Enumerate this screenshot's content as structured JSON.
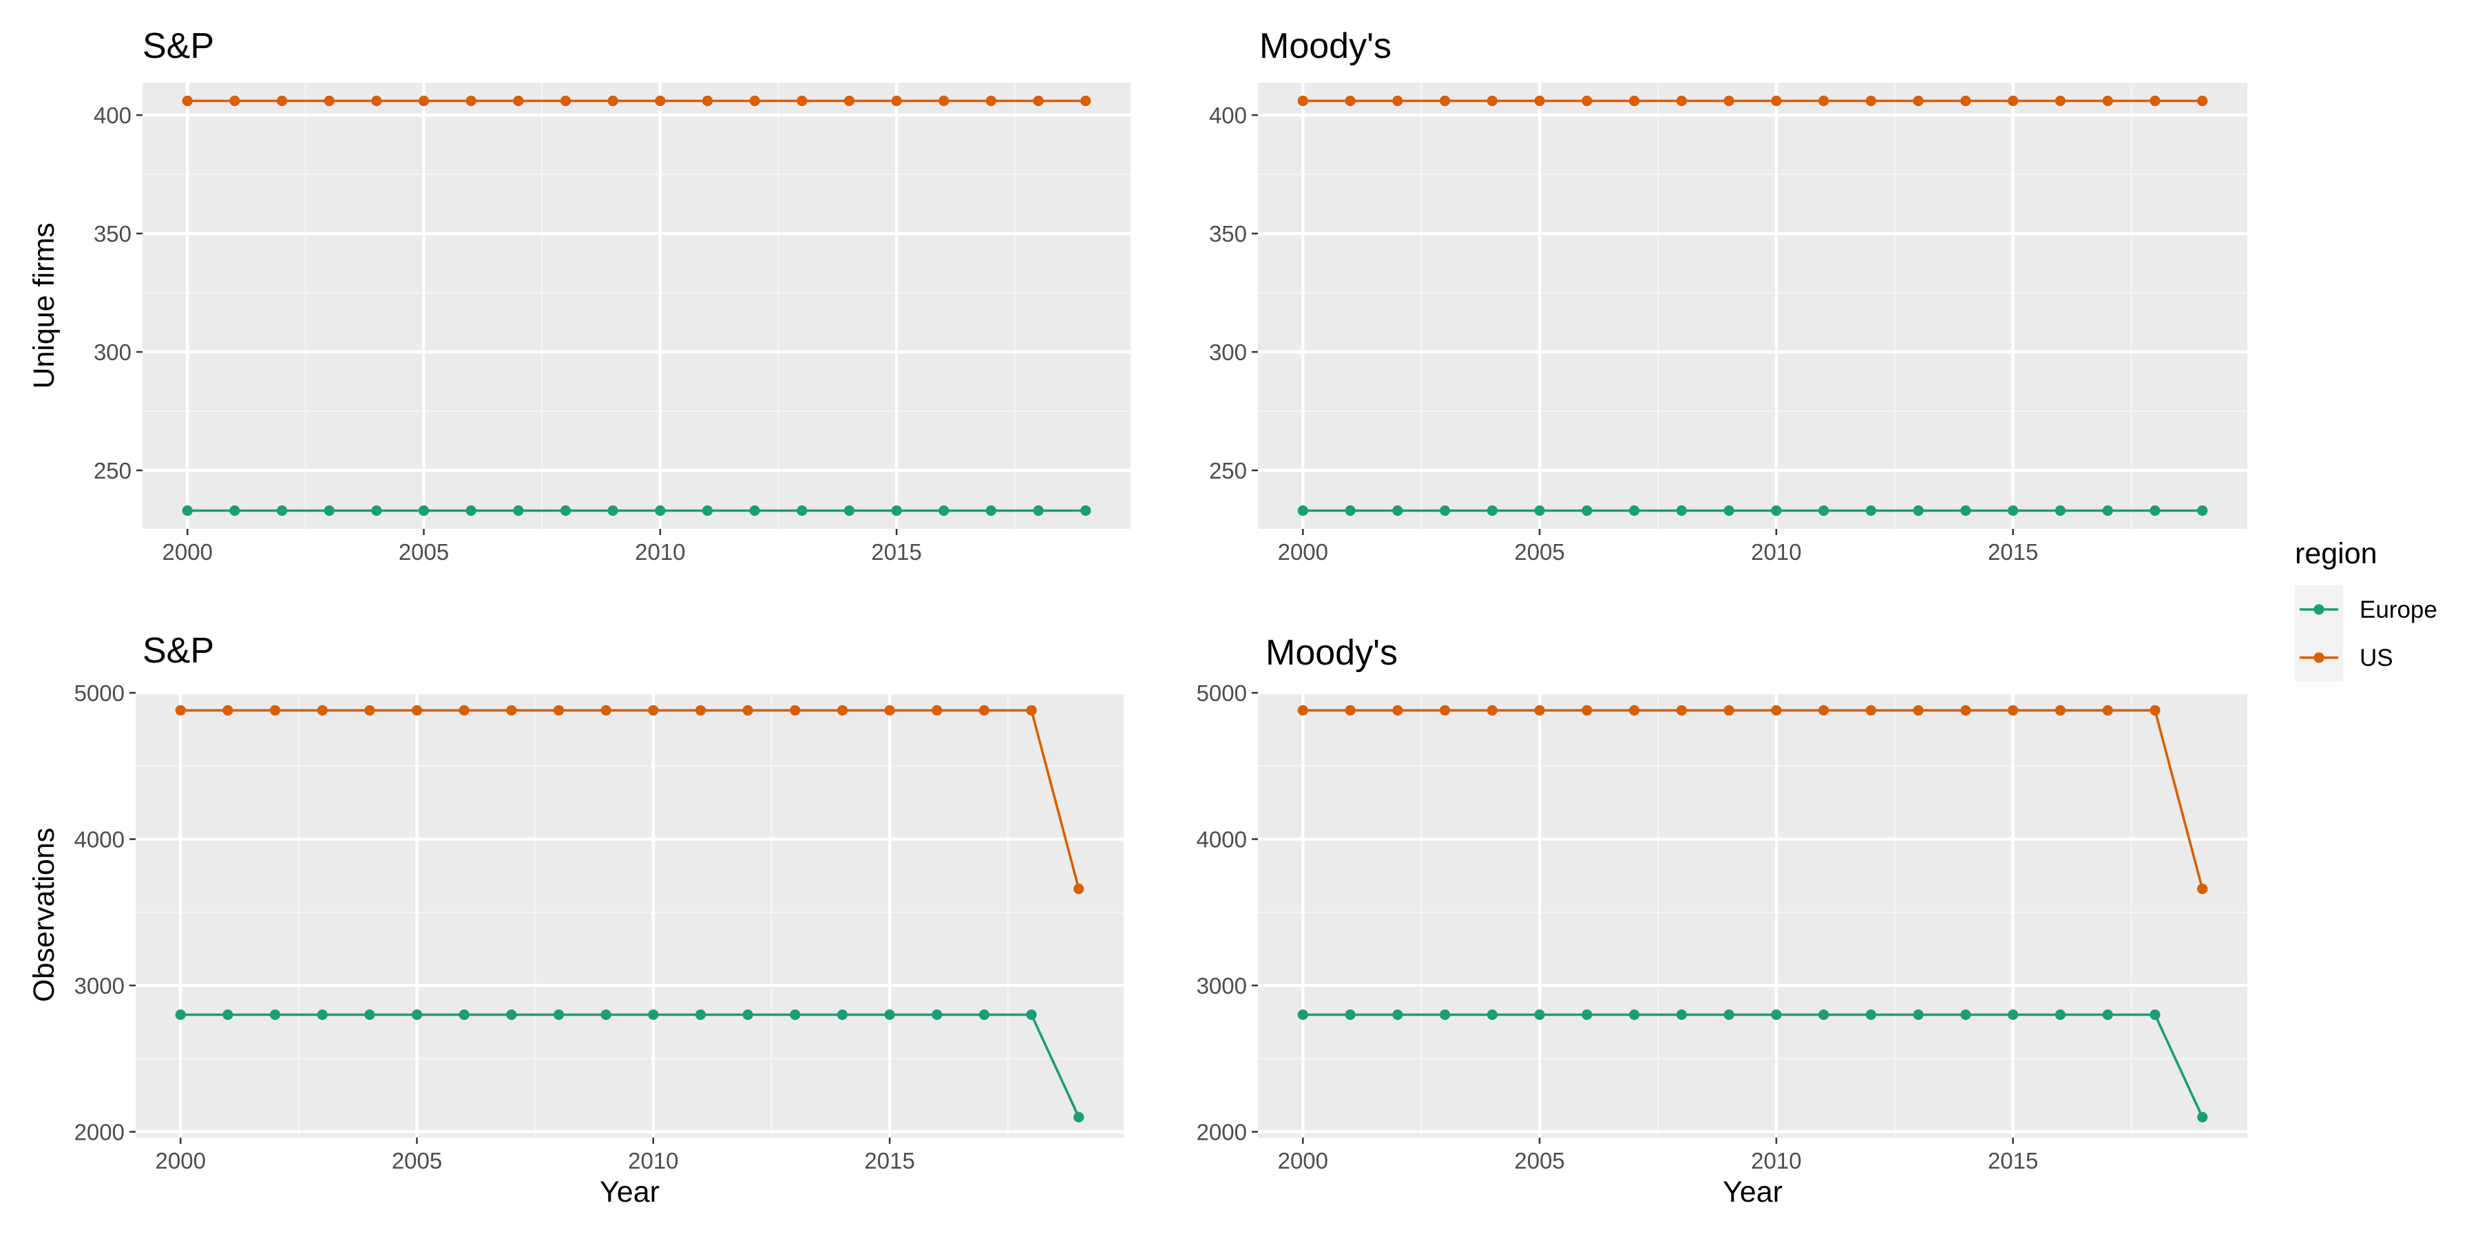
{
  "colors": {
    "panel_bg": "#EBEBEB",
    "grid_major": "#FFFFFF",
    "grid_minor": "#F5F5F5",
    "tick": "#333333",
    "europe": "#1B9E77",
    "us": "#D95F02"
  },
  "axes": {
    "xlabel": "Year",
    "ylabel_top": "Unique firms",
    "ylabel_bottom": "Observations"
  },
  "legend": {
    "title": "region",
    "items": [
      {
        "label": "Europe",
        "color": "#1B9E77"
      },
      {
        "label": "US",
        "color": "#D95F02"
      }
    ]
  },
  "chart_data": [
    {
      "type": "line",
      "title": "S&P",
      "xlabel": "",
      "ylabel": "Unique firms",
      "x": [
        2000,
        2001,
        2002,
        2003,
        2004,
        2005,
        2006,
        2007,
        2008,
        2009,
        2010,
        2011,
        2012,
        2013,
        2014,
        2015,
        2016,
        2017,
        2018,
        2019
      ],
      "xlim": [
        1999.05,
        2019.95
      ],
      "ylim": [
        225.3,
        413.7
      ],
      "xticks": [
        2000,
        2005,
        2010,
        2015
      ],
      "yticks": [
        250,
        300,
        350,
        400
      ],
      "series": [
        {
          "name": "Europe",
          "values": [
            233,
            233,
            233,
            233,
            233,
            233,
            233,
            233,
            233,
            233,
            233,
            233,
            233,
            233,
            233,
            233,
            233,
            233,
            233,
            233
          ]
        },
        {
          "name": "US",
          "values": [
            406,
            406,
            406,
            406,
            406,
            406,
            406,
            406,
            406,
            406,
            406,
            406,
            406,
            406,
            406,
            406,
            406,
            406,
            406,
            406
          ]
        }
      ]
    },
    {
      "type": "line",
      "title": "Moody's",
      "xlabel": "",
      "ylabel": "",
      "x": [
        2000,
        2001,
        2002,
        2003,
        2004,
        2005,
        2006,
        2007,
        2008,
        2009,
        2010,
        2011,
        2012,
        2013,
        2014,
        2015,
        2016,
        2017,
        2018,
        2019
      ],
      "xlim": [
        1999.05,
        2019.95
      ],
      "ylim": [
        225.3,
        413.7
      ],
      "xticks": [
        2000,
        2005,
        2010,
        2015
      ],
      "yticks": [
        250,
        300,
        350,
        400
      ],
      "series": [
        {
          "name": "Europe",
          "values": [
            233,
            233,
            233,
            233,
            233,
            233,
            233,
            233,
            233,
            233,
            233,
            233,
            233,
            233,
            233,
            233,
            233,
            233,
            233,
            233
          ]
        },
        {
          "name": "US",
          "values": [
            406,
            406,
            406,
            406,
            406,
            406,
            406,
            406,
            406,
            406,
            406,
            406,
            406,
            406,
            406,
            406,
            406,
            406,
            406,
            406
          ]
        }
      ]
    },
    {
      "type": "line",
      "title": "S&P",
      "xlabel": "Year",
      "ylabel": "Observations",
      "x": [
        2000,
        2001,
        2002,
        2003,
        2004,
        2005,
        2006,
        2007,
        2008,
        2009,
        2010,
        2011,
        2012,
        2013,
        2014,
        2015,
        2016,
        2017,
        2018,
        2019
      ],
      "xlim": [
        1999.05,
        2019.95
      ],
      "ylim": [
        1960,
        5005
      ],
      "xticks": [
        2000,
        2005,
        2010,
        2015
      ],
      "yticks": [
        2000,
        3000,
        4000,
        5000
      ],
      "series": [
        {
          "name": "Europe",
          "values": [
            2800,
            2800,
            2800,
            2800,
            2800,
            2800,
            2800,
            2800,
            2800,
            2800,
            2800,
            2800,
            2800,
            2800,
            2800,
            2800,
            2800,
            2800,
            2800,
            2100
          ]
        },
        {
          "name": "US",
          "values": [
            4880,
            4880,
            4880,
            4880,
            4880,
            4880,
            4880,
            4880,
            4880,
            4880,
            4880,
            4880,
            4880,
            4880,
            4880,
            4880,
            4880,
            4880,
            4880,
            3660
          ]
        }
      ]
    },
    {
      "type": "line",
      "title": "Moody's",
      "xlabel": "Year",
      "ylabel": "",
      "x": [
        2000,
        2001,
        2002,
        2003,
        2004,
        2005,
        2006,
        2007,
        2008,
        2009,
        2010,
        2011,
        2012,
        2013,
        2014,
        2015,
        2016,
        2017,
        2018,
        2019
      ],
      "xlim": [
        1999.05,
        2019.95
      ],
      "ylim": [
        1960,
        5005
      ],
      "xticks": [
        2000,
        2005,
        2010,
        2015
      ],
      "yticks": [
        2000,
        3000,
        4000,
        5000
      ],
      "series": [
        {
          "name": "Europe",
          "values": [
            2800,
            2800,
            2800,
            2800,
            2800,
            2800,
            2800,
            2800,
            2800,
            2800,
            2800,
            2800,
            2800,
            2800,
            2800,
            2800,
            2800,
            2800,
            2800,
            2100
          ]
        },
        {
          "name": "US",
          "values": [
            4880,
            4880,
            4880,
            4880,
            4880,
            4880,
            4880,
            4880,
            4880,
            4880,
            4880,
            4880,
            4880,
            4880,
            4880,
            4880,
            4880,
            4880,
            4880,
            3660
          ]
        }
      ]
    }
  ]
}
